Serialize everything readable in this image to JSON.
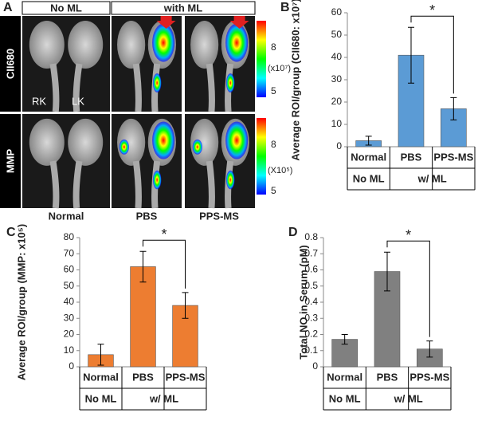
{
  "panel_a": {
    "panel_label": "A",
    "header_left": "No ML",
    "header_right": "with ML",
    "row_labels": [
      "CII680",
      "MMP"
    ],
    "kidney_labels": [
      "RK",
      "LK"
    ],
    "colorbar_top": {
      "high": "8",
      "unit": "(x10⁷)",
      "low": "5"
    },
    "colorbar_bottom": {
      "high": "8",
      "unit": "(X10⁵)",
      "low": "5"
    },
    "column_labels": [
      "Normal",
      "PBS",
      "PPS-MS"
    ]
  },
  "chart_data": [
    {
      "type": "bar",
      "panel_label": "B",
      "y_label": "Average ROI/group (CII680: x10⁷)",
      "categories": [
        "Normal",
        "PBS",
        "PPS-MS"
      ],
      "groups": [
        "No ML",
        "w/ ML"
      ],
      "values": [
        2.7,
        41,
        17
      ],
      "errors": [
        2,
        12.5,
        5
      ],
      "color": "#5b9bd5",
      "ylim": [
        0,
        60
      ],
      "yticks": [
        0,
        10,
        20,
        30,
        40,
        50,
        60
      ],
      "annotation": "*"
    },
    {
      "type": "bar",
      "panel_label": "C",
      "y_label": "Average ROI/group (MMP: x10⁵)",
      "categories": [
        "Normal",
        "PBS",
        "PPS-MS"
      ],
      "groups": [
        "No ML",
        "w/ ML"
      ],
      "values": [
        7.5,
        62,
        38
      ],
      "errors": [
        6.5,
        9.5,
        8
      ],
      "color": "#ed7d31",
      "ylim": [
        0,
        80
      ],
      "yticks": [
        0,
        10,
        20,
        30,
        40,
        50,
        60,
        70,
        80
      ],
      "annotation": "*"
    },
    {
      "type": "bar",
      "panel_label": "D",
      "y_label": "Total NO in Serum (pM)",
      "categories": [
        "Normal",
        "PBS",
        "PPS-MS"
      ],
      "groups": [
        "No ML",
        "w/ ML"
      ],
      "values": [
        0.17,
        0.59,
        0.11
      ],
      "errors": [
        0.03,
        0.12,
        0.05
      ],
      "color": "#808080",
      "ylim": [
        0,
        0.8
      ],
      "yticks": [
        0,
        0.1,
        0.2,
        0.3,
        0.4,
        0.5,
        0.6,
        0.7,
        0.8
      ],
      "annotation": "*"
    }
  ]
}
